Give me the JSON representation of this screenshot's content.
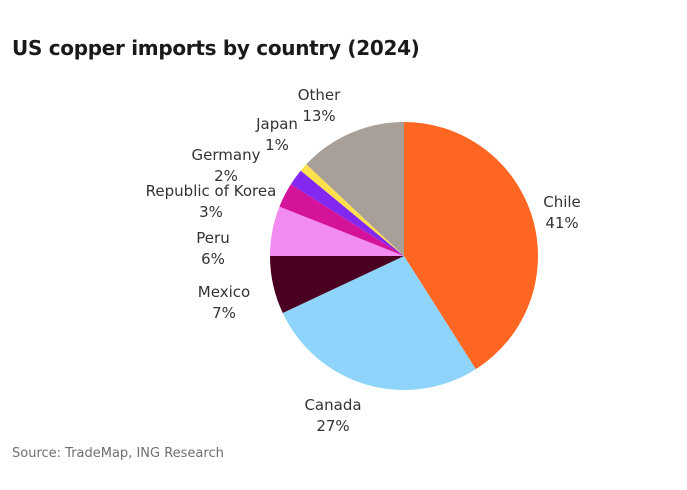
{
  "chart_data": {
    "type": "pie",
    "title": "US copper imports by country (2024)",
    "source": "Source: TradeMap, ING Research",
    "slices": [
      {
        "label": "Chile",
        "value": 41,
        "value_label": "41%",
        "color": "#ff6622"
      },
      {
        "label": "Canada",
        "value": 27,
        "value_label": "27%",
        "color": "#8fd4fb"
      },
      {
        "label": "Mexico",
        "value": 7,
        "value_label": "7%",
        "color": "#4a0020"
      },
      {
        "label": "Peru",
        "value": 6,
        "value_label": "6%",
        "color": "#f38cf2"
      },
      {
        "label": "Republic of Korea",
        "value": 3,
        "value_label": "3%",
        "color": "#d4129a"
      },
      {
        "label": "Germany",
        "value": 2,
        "value_label": "2%",
        "color": "#8228f0"
      },
      {
        "label": "Japan",
        "value": 1,
        "value_label": "1%",
        "color": "#fde04c"
      },
      {
        "label": "Other",
        "value": 13,
        "value_label": "13%",
        "color": "#a89f98"
      }
    ]
  }
}
